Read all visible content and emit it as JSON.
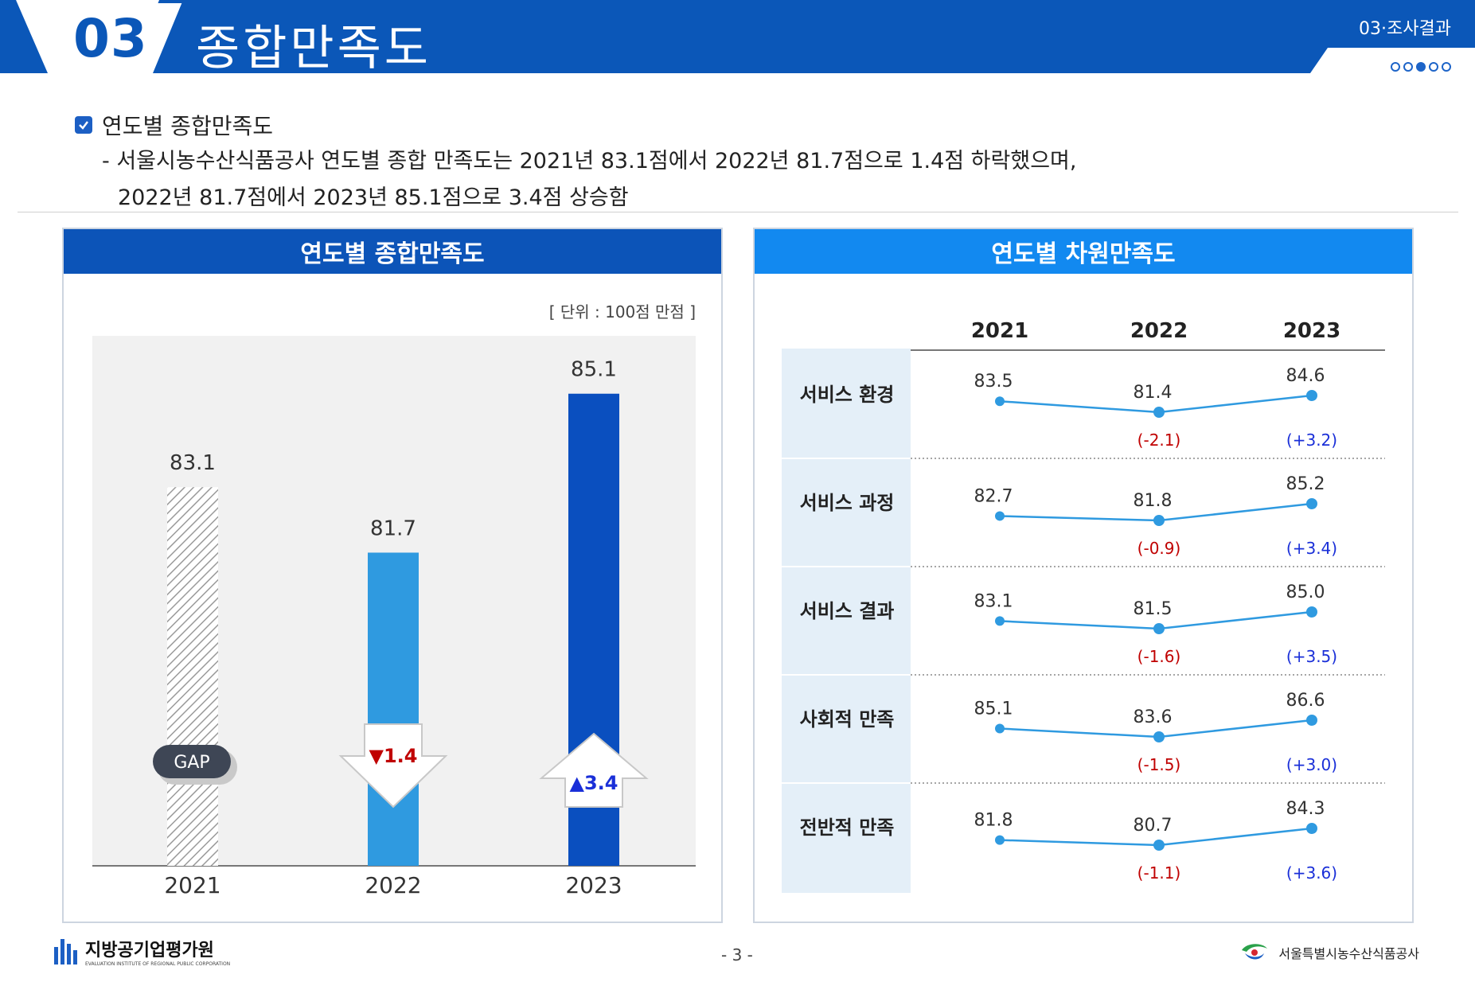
{
  "header": {
    "section_number": "03",
    "section_title": "종합만족도",
    "breadcrumb": "03·조사결과"
  },
  "intro": {
    "heading": "연도별 종합만족도",
    "line1": "- 서울시농수산식품공사 연도별 종합 만족도는 2021년 83.1점에서 2022년 81.7점으로 1.4점 하락했으며,",
    "line2": "2022년 81.7점에서 2023년 85.1점으로 3.4점 상승함"
  },
  "left_panel": {
    "title": "연도별 종합만족도",
    "unit": "[ 단위 : 100점 만점 ]",
    "gap_label": "GAP",
    "change_down": "▼1.4",
    "change_up": "▲3.4"
  },
  "right_panel": {
    "title": "연도별 차원만족도"
  },
  "chart_data": [
    {
      "type": "bar",
      "title": "연도별 종합만족도",
      "categories": [
        "2021",
        "2022",
        "2023"
      ],
      "values": [
        83.1,
        81.7,
        85.1
      ],
      "value_labels": [
        "83.1",
        "81.7",
        "85.1"
      ],
      "colors": [
        "#d9d9d9",
        "#2f9ae0",
        "#0a4fbf"
      ],
      "changes": [
        "",
        "▼1.4",
        "▲3.4"
      ],
      "change_colors": {
        "down": "#c00000",
        "up": "#1a2fd8"
      }
    },
    {
      "type": "line",
      "title": "연도별 차원만족도",
      "years": [
        "2021",
        "2022",
        "2023"
      ],
      "series": [
        {
          "name": "서비스 환경",
          "values": [
            83.5,
            81.4,
            84.6
          ],
          "labels": [
            "83.5",
            "81.4",
            "84.6"
          ],
          "changes": [
            "",
            "(-2.1)",
            "(+3.2)"
          ]
        },
        {
          "name": "서비스 과정",
          "values": [
            82.7,
            81.8,
            85.2
          ],
          "labels": [
            "82.7",
            "81.8",
            "85.2"
          ],
          "changes": [
            "",
            "(-0.9)",
            "(+3.4)"
          ]
        },
        {
          "name": "서비스 결과",
          "values": [
            83.1,
            81.5,
            85.0
          ],
          "labels": [
            "83.1",
            "81.5",
            "85.0"
          ],
          "changes": [
            "",
            "(-1.6)",
            "(+3.5)"
          ]
        },
        {
          "name": "사회적 만족",
          "values": [
            85.1,
            83.6,
            86.6
          ],
          "labels": [
            "85.1",
            "83.6",
            "86.6"
          ],
          "changes": [
            "",
            "(-1.5)",
            "(+3.0)"
          ]
        },
        {
          "name": "전반적 만족",
          "values": [
            81.8,
            80.7,
            84.3
          ],
          "labels": [
            "81.8",
            "80.7",
            "84.3"
          ],
          "changes": [
            "",
            "(-1.1)",
            "(+3.6)"
          ]
        }
      ],
      "line_color": "#2f9ae0",
      "change_colors": {
        "down": "#c00000",
        "up": "#1a2fd8"
      }
    }
  ],
  "footer": {
    "left_org": "지방공기업평가원",
    "left_org_sub": "EVALUATION INSTITUTE OF REGIONAL PUBLIC CORPORATION",
    "page": "- 3 -",
    "right_org": "서울특별시농수산식품공사"
  }
}
